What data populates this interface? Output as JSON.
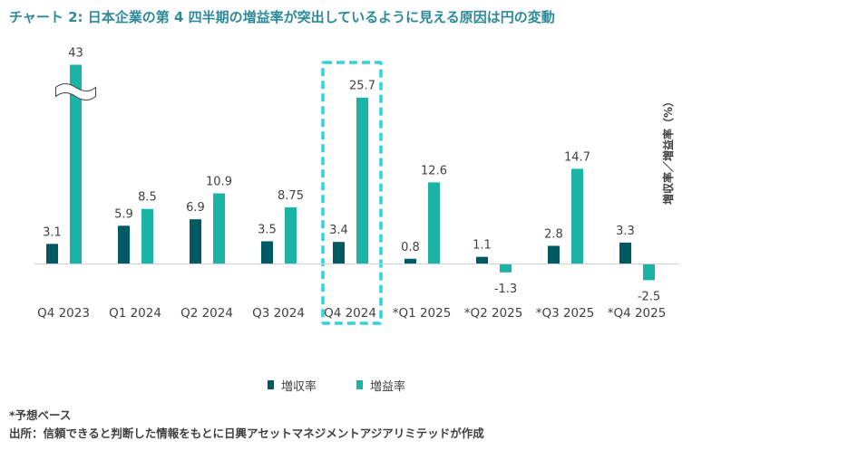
{
  "title": "チャート 2: 日本企業の第 4 四半期の増益率が突出しているように見える原因は円の変動",
  "chart_data": {
    "type": "bar",
    "categories": [
      "Q4 2023",
      "Q1 2024",
      "Q2 2024",
      "Q3 2024",
      "Q4 2024",
      "*Q1 2025",
      "*Q2 2025",
      "*Q3 2025",
      "*Q4 2025"
    ],
    "series": [
      {
        "name": "増収率",
        "values": [
          3.1,
          5.9,
          6.9,
          3.5,
          3.4,
          0.8,
          1.1,
          2.8,
          3.3
        ],
        "labels": [
          "3.1",
          "5.9",
          "6.9",
          "3.5",
          "3.4",
          "0.8",
          "1.1",
          "2.8",
          "3.3"
        ]
      },
      {
        "name": "増益率",
        "values": [
          43,
          8.5,
          10.9,
          8.75,
          25.7,
          12.6,
          -1.3,
          14.7,
          -2.5
        ],
        "labels": [
          "43",
          "8.5",
          "10.9",
          "8.75",
          "25.7",
          "12.6",
          "-1.3",
          "14.7",
          "-2.5"
        ]
      }
    ],
    "ylabel": "増収率／増益率（%）",
    "broken_axis_category": "Q4 2023",
    "highlighted_category": "Q4 2024",
    "colors": {
      "revenue": "#005a64",
      "profit": "#1ab3a6",
      "highlight": "#2dd3e0",
      "axis": "#d0d0d0"
    },
    "legend_position": "bottom",
    "grid": false
  },
  "footnotes": {
    "forecast": "*予想ベース",
    "source": "出所：信頼できると判断した情報をもとに日興アセットマネジメントアジアリミテッドが作成"
  }
}
